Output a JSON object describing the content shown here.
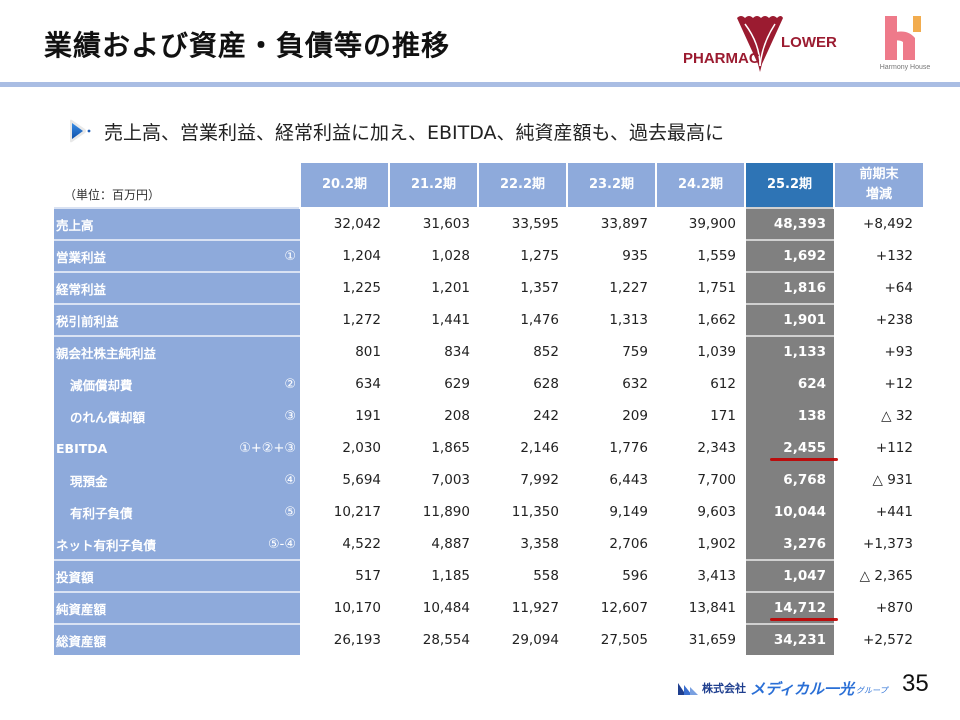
{
  "header": {
    "title": "業績および資産・負債等の推移",
    "logos": {
      "pharmac_left": "PHARMAC",
      "pharmac_right": "LOWER",
      "harmony_text": "Harmony House"
    }
  },
  "headline": {
    "icon": "play-bullet-icon",
    "text": "売上高、営業利益、経常利益に加え、EBITDA、純資産額も、過去最高に"
  },
  "table": {
    "unit_label": "（単位：百万円）",
    "columns": [
      "20.2期",
      "21.2期",
      "22.2期",
      "23.2期",
      "24.2期",
      "25.2期"
    ],
    "diff_header_line1": "前期末",
    "diff_header_line2": "増減",
    "rows": [
      {
        "label": "売上高",
        "note": "",
        "indent": false,
        "values": [
          "32,042",
          "31,603",
          "33,595",
          "33,897",
          "39,900",
          "48,393"
        ],
        "diff": "+8,492"
      },
      {
        "label": "営業利益",
        "note": "①",
        "indent": false,
        "values": [
          "1,204",
          "1,028",
          "1,275",
          "935",
          "1,559",
          "1,692"
        ],
        "diff": "+132"
      },
      {
        "label": "経常利益",
        "note": "",
        "indent": false,
        "values": [
          "1,225",
          "1,201",
          "1,357",
          "1,227",
          "1,751",
          "1,816"
        ],
        "diff": "+64"
      },
      {
        "label": "税引前利益",
        "note": "",
        "indent": false,
        "values": [
          "1,272",
          "1,441",
          "1,476",
          "1,313",
          "1,662",
          "1,901"
        ],
        "diff": "+238"
      },
      {
        "label": "親会社株主純利益",
        "note": "",
        "indent": false,
        "values": [
          "801",
          "834",
          "852",
          "759",
          "1,039",
          "1,133"
        ],
        "diff": "+93"
      },
      {
        "label": "減価償却費",
        "note": "②",
        "indent": true,
        "values": [
          "634",
          "629",
          "628",
          "632",
          "612",
          "624"
        ],
        "diff": "+12"
      },
      {
        "label": "のれん償却額",
        "note": "③",
        "indent": true,
        "values": [
          "191",
          "208",
          "242",
          "209",
          "171",
          "138"
        ],
        "diff": "△ 32"
      },
      {
        "label": "EBITDA",
        "note": "①+②+③",
        "indent": false,
        "values": [
          "2,030",
          "1,865",
          "2,146",
          "1,776",
          "2,343",
          "2,455"
        ],
        "diff": "+112"
      },
      {
        "label": "現預金",
        "note": "④",
        "indent": true,
        "values": [
          "5,694",
          "7,003",
          "7,992",
          "6,443",
          "7,700",
          "6,768"
        ],
        "diff": "△ 931"
      },
      {
        "label": "有利子負債",
        "note": "⑤",
        "indent": true,
        "values": [
          "10,217",
          "11,890",
          "11,350",
          "9,149",
          "9,603",
          "10,044"
        ],
        "diff": "+441"
      },
      {
        "label": "ネット有利子負債",
        "note": "⑤-④",
        "indent": false,
        "values": [
          "4,522",
          "4,887",
          "3,358",
          "2,706",
          "1,902",
          "3,276"
        ],
        "diff": "+1,373"
      },
      {
        "label": "投資額",
        "note": "",
        "indent": false,
        "values": [
          "517",
          "1,185",
          "558",
          "596",
          "3,413",
          "1,047"
        ],
        "diff": "△ 2,365"
      },
      {
        "label": "純資産額",
        "note": "",
        "indent": false,
        "values": [
          "10,170",
          "10,484",
          "11,927",
          "12,607",
          "13,841",
          "14,712"
        ],
        "diff": "+870"
      },
      {
        "label": "総資産額",
        "note": "",
        "indent": false,
        "values": [
          "26,193",
          "28,554",
          "29,094",
          "27,505",
          "31,659",
          "34,231"
        ],
        "diff": "+2,572"
      }
    ]
  },
  "footer": {
    "company_prefix": "株式会社",
    "company_name": "メディカル一光",
    "group_suffix": "グループ",
    "page_number": "35"
  },
  "colors": {
    "header_blue": "#8eaadb",
    "current_header": "#2e74b5",
    "current_column": "#808080",
    "title_rule": "#a9bde3",
    "highlight_underline": "#c00000"
  }
}
